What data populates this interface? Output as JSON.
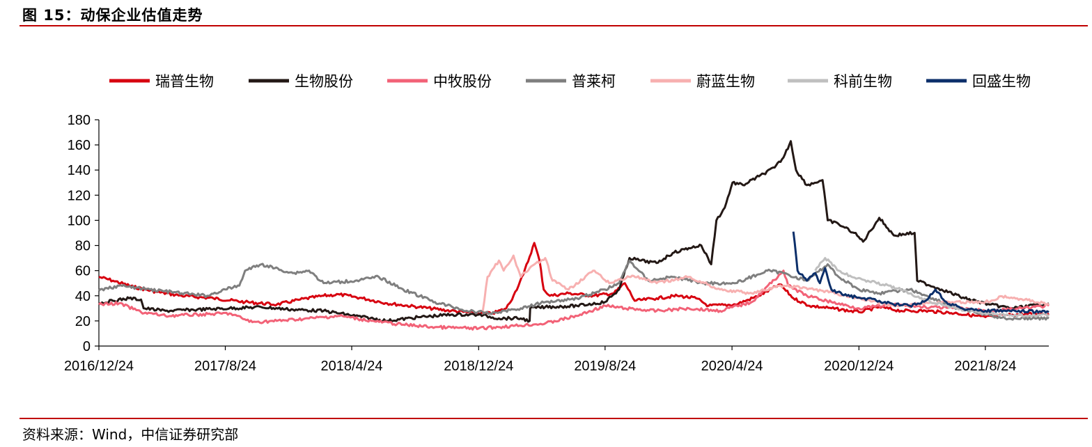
{
  "header": {
    "title": "图 15：动保企业估值走势"
  },
  "footer": {
    "source": "资料来源：Wind，中信证券研究部"
  },
  "chart_data": {
    "type": "line",
    "title": "图 15：动保企业估值走势",
    "xlabel": "",
    "ylabel": "",
    "ylim": [
      0,
      180
    ],
    "yticks": [
      0,
      20,
      40,
      60,
      80,
      100,
      120,
      140,
      160,
      180
    ],
    "xlim": [
      "2016/12/24",
      "2021/12/24"
    ],
    "xticks": [
      "2016/12/24",
      "2017/8/24",
      "2018/4/24",
      "2018/12/24",
      "2019/8/24",
      "2020/4/24",
      "2020/12/24",
      "2021/8/24"
    ],
    "grid": false,
    "legend_position": "top",
    "series": [
      {
        "name": "瑞普生物",
        "color": "#d7000f",
        "dash": "solid",
        "points": [
          [
            "2016/12/24",
            55
          ],
          [
            "2017/1/20",
            52
          ],
          [
            "2017/3/1",
            47
          ],
          [
            "2017/4/15",
            43
          ],
          [
            "2017/6/1",
            40
          ],
          [
            "2017/8/1",
            38
          ],
          [
            "2017/10/1",
            35
          ],
          [
            "2017/12/1",
            33
          ],
          [
            "2018/1/15",
            37
          ],
          [
            "2018/3/1",
            40
          ],
          [
            "2018/4/1",
            41
          ],
          [
            "2018/5/15",
            38
          ],
          [
            "2018/7/1",
            34
          ],
          [
            "2018/9/1",
            31
          ],
          [
            "2018/11/1",
            28
          ],
          [
            "2018/12/24",
            26
          ],
          [
            "2019/1/20",
            26
          ],
          [
            "2019/2/15",
            30
          ],
          [
            "2019/3/1",
            40
          ],
          [
            "2019/3/20",
            57
          ],
          [
            "2019/4/10",
            82
          ],
          [
            "2019/4/20",
            68
          ],
          [
            "2019/4/28",
            45
          ],
          [
            "2019/5/10",
            40
          ],
          [
            "2019/6/15",
            42
          ],
          [
            "2019/8/1",
            40
          ],
          [
            "2019/9/10",
            42
          ],
          [
            "2019/10/1",
            50
          ],
          [
            "2019/10/20",
            36
          ],
          [
            "2019/12/1",
            38
          ],
          [
            "2020/1/10",
            40
          ],
          [
            "2020/2/15",
            38
          ],
          [
            "2020/3/10",
            32
          ],
          [
            "2020/5/1",
            33
          ],
          [
            "2020/6/15",
            40
          ],
          [
            "2020/7/25",
            49
          ],
          [
            "2020/8/20",
            38
          ],
          [
            "2020/9/20",
            32
          ],
          [
            "2020/11/1",
            30
          ],
          [
            "2020/12/24",
            27
          ],
          [
            "2021/2/1",
            31
          ],
          [
            "2021/3/15",
            28
          ],
          [
            "2021/5/1",
            28
          ],
          [
            "2021/7/1",
            26
          ],
          [
            "2021/8/24",
            23
          ],
          [
            "2021/10/15",
            25
          ],
          [
            "2021/12/24",
            26
          ]
        ]
      },
      {
        "name": "生物股份",
        "color": "#231815",
        "dash": "solid",
        "points": [
          [
            "2016/12/24",
            34
          ],
          [
            "2017/1/20",
            36
          ],
          [
            "2017/2/20",
            38
          ],
          [
            "2017/3/15",
            37
          ],
          [
            "2017/3/20",
            30
          ],
          [
            "2017/5/1",
            28
          ],
          [
            "2017/7/1",
            29
          ],
          [
            "2017/9/1",
            30
          ],
          [
            "2017/11/1",
            31
          ],
          [
            "2018/1/1",
            29
          ],
          [
            "2018/3/1",
            28
          ],
          [
            "2018/5/1",
            24
          ],
          [
            "2018/7/1",
            20
          ],
          [
            "2018/9/1",
            23
          ],
          [
            "2018/11/1",
            25
          ],
          [
            "2018/12/24",
            25
          ],
          [
            "2019/2/1",
            22
          ],
          [
            "2019/3/15",
            22
          ],
          [
            "2019/4/1",
            20
          ],
          [
            "2019/4/2",
            30
          ],
          [
            "2019/5/1",
            31
          ],
          [
            "2019/7/1",
            32
          ],
          [
            "2019/8/24",
            35
          ],
          [
            "2019/9/20",
            45
          ],
          [
            "2019/10/10",
            70
          ],
          [
            "2019/11/1",
            68
          ],
          [
            "2019/12/1",
            66
          ],
          [
            "2020/1/1",
            74
          ],
          [
            "2020/2/1",
            78
          ],
          [
            "2020/2/25",
            80
          ],
          [
            "2020/3/15",
            65
          ],
          [
            "2020/3/25",
            100
          ],
          [
            "2020/4/10",
            110
          ],
          [
            "2020/4/25",
            130
          ],
          [
            "2020/5/15",
            128
          ],
          [
            "2020/6/15",
            135
          ],
          [
            "2020/7/15",
            142
          ],
          [
            "2020/8/1",
            150
          ],
          [
            "2020/8/15",
            163
          ],
          [
            "2020/8/25",
            140
          ],
          [
            "2020/9/15",
            128
          ],
          [
            "2020/10/15",
            132
          ],
          [
            "2020/10/25",
            100
          ],
          [
            "2020/11/15",
            97
          ],
          [
            "2020/12/15",
            90
          ],
          [
            "2021/1/1",
            83
          ],
          [
            "2021/2/1",
            102
          ],
          [
            "2021/3/1",
            88
          ],
          [
            "2021/4/10",
            90
          ],
          [
            "2021/4/15",
            52
          ],
          [
            "2021/6/1",
            45
          ],
          [
            "2021/7/15",
            38
          ],
          [
            "2021/9/1",
            33
          ],
          [
            "2021/10/15",
            30
          ],
          [
            "2021/12/24",
            34
          ]
        ]
      },
      {
        "name": "中牧股份",
        "color": "#f26277",
        "dash": "solid",
        "points": [
          [
            "2016/12/24",
            33
          ],
          [
            "2017/2/1",
            34
          ],
          [
            "2017/3/15",
            27
          ],
          [
            "2017/5/1",
            24
          ],
          [
            "2017/7/1",
            25
          ],
          [
            "2017/9/1",
            26
          ],
          [
            "2017/10/15",
            19
          ],
          [
            "2017/12/1",
            20
          ],
          [
            "2018/2/1",
            22
          ],
          [
            "2018/4/1",
            24
          ],
          [
            "2018/6/1",
            20
          ],
          [
            "2018/8/1",
            17
          ],
          [
            "2018/10/1",
            15
          ],
          [
            "2018/12/24",
            14
          ],
          [
            "2019/3/1",
            16
          ],
          [
            "2019/5/1",
            18
          ],
          [
            "2019/7/1",
            24
          ],
          [
            "2019/8/24",
            32
          ],
          [
            "2019/10/1",
            30
          ],
          [
            "2019/12/1",
            28
          ],
          [
            "2020/2/1",
            30
          ],
          [
            "2020/4/1",
            28
          ],
          [
            "2020/6/1",
            35
          ],
          [
            "2020/8/1",
            60
          ],
          [
            "2020/8/10",
            48
          ],
          [
            "2020/9/15",
            40
          ],
          [
            "2020/11/1",
            35
          ],
          [
            "2020/12/24",
            30
          ],
          [
            "2021/3/1",
            33
          ],
          [
            "2021/5/1",
            31
          ],
          [
            "2021/7/1",
            30
          ],
          [
            "2021/9/1",
            28
          ],
          [
            "2021/11/1",
            30
          ],
          [
            "2021/12/24",
            32
          ]
        ]
      },
      {
        "name": "普莱柯",
        "color": "#7f7f7f",
        "dash": "solid",
        "points": [
          [
            "2016/12/24",
            44
          ],
          [
            "2017/2/1",
            48
          ],
          [
            "2017/4/1",
            45
          ],
          [
            "2017/6/1",
            42
          ],
          [
            "2017/7/20",
            40
          ],
          [
            "2017/8/24",
            45
          ],
          [
            "2017/9/20",
            48
          ],
          [
            "2017/10/1",
            60
          ],
          [
            "2017/11/1",
            65
          ],
          [
            "2018/1/1",
            58
          ],
          [
            "2018/2/1",
            60
          ],
          [
            "2018/3/1",
            50
          ],
          [
            "2018/5/1",
            52
          ],
          [
            "2018/6/15",
            55
          ],
          [
            "2018/8/1",
            45
          ],
          [
            "2018/10/1",
            35
          ],
          [
            "2018/12/1",
            28
          ],
          [
            "2019/1/15",
            26
          ],
          [
            "2019/3/15",
            30
          ],
          [
            "2019/5/1",
            35
          ],
          [
            "2019/7/1",
            38
          ],
          [
            "2019/8/24",
            45
          ],
          [
            "2019/9/20",
            50
          ],
          [
            "2019/10/10",
            68
          ],
          [
            "2019/11/15",
            52
          ],
          [
            "2020/1/1",
            55
          ],
          [
            "2020/3/1",
            50
          ],
          [
            "2020/5/1",
            50
          ],
          [
            "2020/7/1",
            60
          ],
          [
            "2020/8/1",
            58
          ],
          [
            "2020/9/15",
            52
          ],
          [
            "2020/10/25",
            65
          ],
          [
            "2020/11/15",
            55
          ],
          [
            "2020/12/24",
            45
          ],
          [
            "2021/2/1",
            42
          ],
          [
            "2021/4/1",
            45
          ],
          [
            "2021/5/15",
            38
          ],
          [
            "2021/7/1",
            30
          ],
          [
            "2021/8/24",
            25
          ],
          [
            "2021/10/1",
            22
          ],
          [
            "2021/12/24",
            22
          ]
        ]
      },
      {
        "name": "蔚蓝生物",
        "color": "#f7b0b0",
        "dash": "solid",
        "points": [
          [
            "2019/1/1",
            28
          ],
          [
            "2019/1/10",
            55
          ],
          [
            "2019/2/1",
            68
          ],
          [
            "2019/2/10",
            60
          ],
          [
            "2019/3/1",
            72
          ],
          [
            "2019/3/15",
            55
          ],
          [
            "2019/4/1",
            62
          ],
          [
            "2019/5/1",
            70
          ],
          [
            "2019/5/15",
            52
          ],
          [
            "2019/6/15",
            45
          ],
          [
            "2019/8/1",
            60
          ],
          [
            "2019/9/1",
            50
          ],
          [
            "2019/10/15",
            56
          ],
          [
            "2019/12/1",
            50
          ],
          [
            "2020/2/1",
            55
          ],
          [
            "2020/4/1",
            45
          ],
          [
            "2020/6/1",
            42
          ],
          [
            "2020/8/1",
            48
          ],
          [
            "2020/10/1",
            45
          ],
          [
            "2020/12/24",
            38
          ],
          [
            "2021/3/1",
            32
          ],
          [
            "2021/6/1",
            35
          ],
          [
            "2021/8/24",
            35
          ],
          [
            "2021/10/1",
            40
          ],
          [
            "2021/12/24",
            33
          ]
        ]
      },
      {
        "name": "科前生物",
        "color": "#bfbfbf",
        "dash": "solid",
        "points": [
          [
            "2020/10/1",
            60
          ],
          [
            "2020/10/20",
            70
          ],
          [
            "2020/11/15",
            60
          ],
          [
            "2020/12/10",
            55
          ],
          [
            "2021/1/10",
            52
          ],
          [
            "2021/2/20",
            48
          ],
          [
            "2021/3/20",
            44
          ],
          [
            "2021/4/20",
            38
          ],
          [
            "2021/5/20",
            34
          ],
          [
            "2021/7/1",
            30
          ],
          [
            "2021/8/24",
            26
          ],
          [
            "2021/10/15",
            24
          ],
          [
            "2021/12/24",
            25
          ]
        ]
      },
      {
        "name": "回盛生物",
        "color": "#0c2f6a",
        "dash": "solid",
        "points": [
          [
            "2020/8/20",
            91
          ],
          [
            "2020/8/28",
            60
          ],
          [
            "2020/9/15",
            52
          ],
          [
            "2020/10/1",
            58
          ],
          [
            "2020/10/10",
            50
          ],
          [
            "2020/10/20",
            62
          ],
          [
            "2020/11/1",
            45
          ],
          [
            "2020/12/1",
            40
          ],
          [
            "2021/1/1",
            38
          ],
          [
            "2021/2/1",
            36
          ],
          [
            "2021/3/1",
            33
          ],
          [
            "2021/4/1",
            32
          ],
          [
            "2021/5/1",
            36
          ],
          [
            "2021/5/20",
            45
          ],
          [
            "2021/6/10",
            35
          ],
          [
            "2021/7/10",
            30
          ],
          [
            "2021/8/24",
            28
          ],
          [
            "2021/10/1",
            28
          ],
          [
            "2021/12/24",
            27
          ]
        ]
      }
    ]
  }
}
